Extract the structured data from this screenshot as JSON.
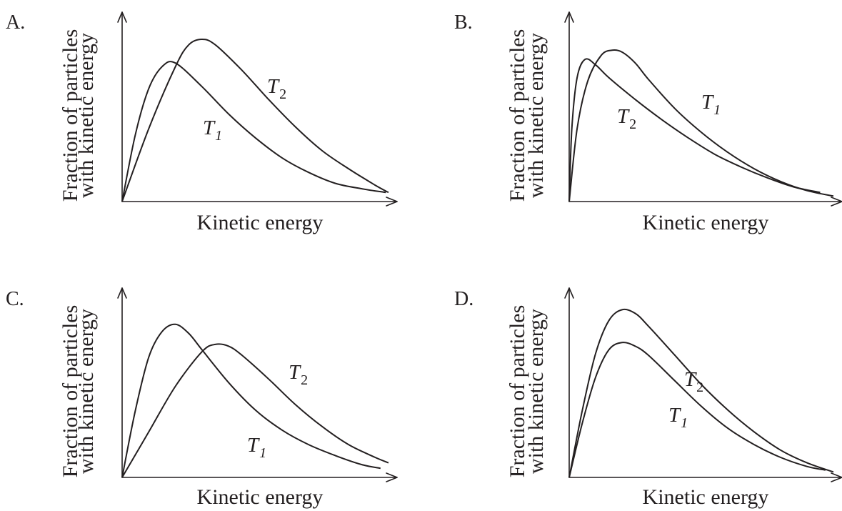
{
  "chart_data": [
    {
      "type": "line",
      "panel_label": "A.",
      "xlabel": "Kinetic energy",
      "ylabel_lines": [
        "Fraction of particles",
        "with kinetic energy"
      ],
      "series": [
        {
          "name": "T1",
          "label_main": "T",
          "label_sub": "1",
          "sub_italic": true,
          "x": [
            0,
            0.05,
            0.1,
            0.15,
            0.2,
            0.3,
            0.4,
            0.5,
            0.6,
            0.7,
            0.8,
            0.9,
            0.99
          ],
          "y": [
            0,
            0.37,
            0.62,
            0.74,
            0.76,
            0.63,
            0.48,
            0.35,
            0.24,
            0.16,
            0.1,
            0.07,
            0.05
          ]
        },
        {
          "name": "T2",
          "label_main": "T",
          "label_sub": "2",
          "sub_italic": false,
          "x": [
            0,
            0.1,
            0.2,
            0.25,
            0.3,
            0.35,
            0.45,
            0.55,
            0.65,
            0.75,
            0.85,
            0.95,
            1.0
          ],
          "y": [
            0,
            0.4,
            0.74,
            0.86,
            0.89,
            0.86,
            0.72,
            0.56,
            0.41,
            0.28,
            0.18,
            0.09,
            0.05
          ]
        }
      ]
    },
    {
      "type": "line",
      "panel_label": "B.",
      "xlabel": "Kinetic energy",
      "ylabel_lines": [
        "Fraction of particles",
        "with kinetic energy"
      ],
      "series": [
        {
          "name": "T2",
          "label_main": "T",
          "label_sub": "2",
          "sub_italic": false,
          "x": [
            0,
            0.01,
            0.03,
            0.06,
            0.1,
            0.15,
            0.25,
            0.35,
            0.45,
            0.55,
            0.65,
            0.75,
            0.85,
            0.95
          ],
          "y": [
            0,
            0.4,
            0.68,
            0.78,
            0.75,
            0.68,
            0.56,
            0.45,
            0.35,
            0.26,
            0.19,
            0.13,
            0.08,
            0.05
          ]
        },
        {
          "name": "T1",
          "label_main": "T",
          "label_sub": "1",
          "sub_italic": true,
          "x": [
            0,
            0.03,
            0.07,
            0.12,
            0.16,
            0.2,
            0.25,
            0.3,
            0.4,
            0.5,
            0.6,
            0.7,
            0.8,
            0.9,
            1.0
          ],
          "y": [
            0,
            0.4,
            0.66,
            0.8,
            0.83,
            0.82,
            0.76,
            0.67,
            0.51,
            0.38,
            0.27,
            0.18,
            0.11,
            0.06,
            0.03
          ]
        }
      ]
    },
    {
      "type": "line",
      "panel_label": "C.",
      "xlabel": "Kinetic energy",
      "ylabel_lines": [
        "Fraction of particles",
        "with kinetic energy"
      ],
      "series": [
        {
          "name": "T1",
          "label_main": "T",
          "label_sub": "1",
          "sub_italic": true,
          "x": [
            0,
            0.05,
            0.1,
            0.15,
            0.2,
            0.25,
            0.3,
            0.4,
            0.5,
            0.6,
            0.7,
            0.8,
            0.9,
            0.97
          ],
          "y": [
            0,
            0.37,
            0.66,
            0.8,
            0.84,
            0.79,
            0.7,
            0.52,
            0.37,
            0.26,
            0.18,
            0.12,
            0.07,
            0.05
          ]
        },
        {
          "name": "T2",
          "label_main": "T",
          "label_sub": "2",
          "sub_italic": false,
          "x": [
            0,
            0.1,
            0.2,
            0.3,
            0.35,
            0.4,
            0.45,
            0.55,
            0.65,
            0.75,
            0.85,
            0.95,
            1.0
          ],
          "y": [
            0,
            0.25,
            0.5,
            0.69,
            0.73,
            0.72,
            0.67,
            0.54,
            0.4,
            0.28,
            0.18,
            0.11,
            0.08
          ]
        }
      ]
    },
    {
      "type": "line",
      "panel_label": "D.",
      "xlabel": "Kinetic energy",
      "ylabel_lines": [
        "Fraction of particles",
        "with kinetic energy"
      ],
      "series": [
        {
          "name": "T1",
          "label_main": "T",
          "label_sub": "1",
          "sub_italic": true,
          "x": [
            0,
            0.05,
            0.1,
            0.15,
            0.2,
            0.25,
            0.3,
            0.4,
            0.5,
            0.6,
            0.7,
            0.8,
            0.9,
            0.97
          ],
          "y": [
            0,
            0.3,
            0.55,
            0.7,
            0.74,
            0.72,
            0.67,
            0.53,
            0.39,
            0.27,
            0.18,
            0.11,
            0.06,
            0.04
          ]
        },
        {
          "name": "T2",
          "label_main": "T",
          "label_sub": "2",
          "sub_italic": false,
          "x": [
            0,
            0.05,
            0.1,
            0.15,
            0.2,
            0.25,
            0.3,
            0.4,
            0.5,
            0.6,
            0.7,
            0.8,
            0.9,
            1.0
          ],
          "y": [
            0,
            0.37,
            0.68,
            0.86,
            0.92,
            0.9,
            0.83,
            0.67,
            0.51,
            0.37,
            0.25,
            0.15,
            0.08,
            0.03
          ]
        }
      ]
    }
  ]
}
